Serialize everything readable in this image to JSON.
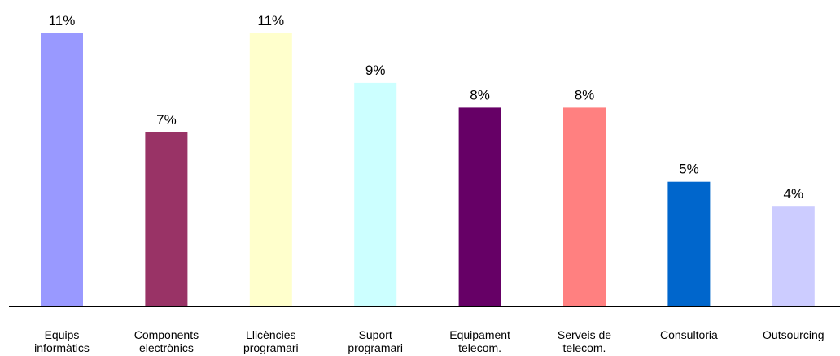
{
  "chart_data": {
    "type": "bar",
    "categories": [
      [
        "Equips",
        "informàtics"
      ],
      [
        "Components",
        "electrònics"
      ],
      [
        "Llicències",
        "programari"
      ],
      [
        "Suport",
        "programari"
      ],
      [
        "Equipament",
        "telecom."
      ],
      [
        "Serveis de",
        "telecom."
      ],
      [
        "Consultoria"
      ],
      [
        "Outsourcing"
      ]
    ],
    "values": [
      11,
      7,
      11,
      9,
      8,
      8,
      5,
      4
    ],
    "data_labels": [
      "11%",
      "7%",
      "11%",
      "9%",
      "8%",
      "8%",
      "5%",
      "4%"
    ],
    "bar_colors": [
      "#9999FF",
      "#993366",
      "#FFFFCC",
      "#CCFFFF",
      "#660066",
      "#FF8080",
      "#0066CC",
      "#CCCCFF"
    ],
    "unit": "%",
    "ylim": [
      0,
      11
    ],
    "grid": false,
    "legend": "none",
    "title": "",
    "xlabel": "",
    "ylabel": ""
  }
}
